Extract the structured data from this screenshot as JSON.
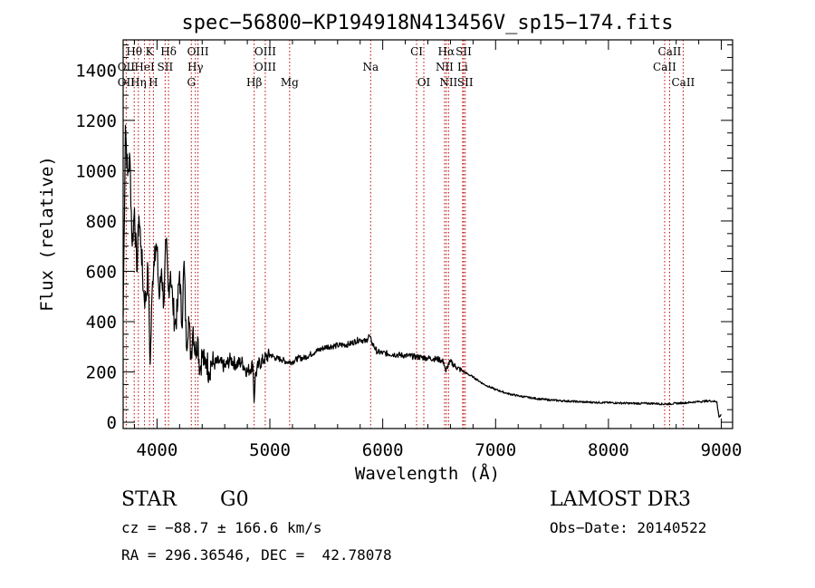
{
  "chart_data": {
    "type": "line",
    "title": "spec−56800−KP194918N413456V_sp15−174.fits",
    "xlabel": "Wavelength (Å)",
    "ylabel": "Flux (relative)",
    "xlim": [
      3700,
      9100
    ],
    "ylim": [
      -25,
      1520
    ],
    "x_ticks": [
      4000,
      5000,
      6000,
      7000,
      8000,
      9000
    ],
    "y_ticks": [
      0,
      200,
      400,
      600,
      800,
      1000,
      1200,
      1400
    ],
    "grid": false,
    "series": [
      {
        "name": "flux",
        "x": [
          3700,
          3720,
          3740,
          3760,
          3780,
          3800,
          3820,
          3840,
          3860,
          3880,
          3900,
          3920,
          3940,
          3960,
          3980,
          4000,
          4020,
          4040,
          4060,
          4080,
          4100,
          4120,
          4140,
          4160,
          4180,
          4200,
          4220,
          4240,
          4260,
          4280,
          4300,
          4320,
          4340,
          4360,
          4380,
          4400,
          4420,
          4440,
          4460,
          4480,
          4500,
          4550,
          4600,
          4650,
          4700,
          4750,
          4800,
          4850,
          4860,
          4870,
          4900,
          4950,
          5000,
          5050,
          5100,
          5150,
          5200,
          5250,
          5300,
          5400,
          5500,
          5600,
          5700,
          5800,
          5850,
          5880,
          5900,
          5950,
          6000,
          6100,
          6200,
          6300,
          6400,
          6500,
          6540,
          6560,
          6580,
          6600,
          6650,
          6700,
          6800,
          6900,
          7000,
          7100,
          7200,
          7300,
          7400,
          7500,
          7600,
          7800,
          8000,
          8200,
          8400,
          8500,
          8600,
          8700,
          8800,
          8900,
          8960,
          8980,
          9000
        ],
        "y": [
          420,
          1180,
          980,
          1050,
          700,
          850,
          600,
          820,
          700,
          520,
          480,
          610,
          230,
          560,
          700,
          680,
          490,
          610,
          470,
          720,
          520,
          600,
          470,
          390,
          440,
          600,
          380,
          640,
          300,
          420,
          260,
          380,
          270,
          340,
          210,
          270,
          230,
          250,
          200,
          240,
          230,
          240,
          220,
          250,
          230,
          240,
          200,
          230,
          80,
          180,
          230,
          250,
          270,
          255,
          250,
          240,
          240,
          255,
          255,
          280,
          300,
          305,
          310,
          330,
          320,
          345,
          320,
          280,
          275,
          270,
          265,
          260,
          255,
          250,
          240,
          200,
          230,
          240,
          220,
          205,
          180,
          150,
          130,
          115,
          105,
          98,
          92,
          88,
          85,
          80,
          78,
          75,
          75,
          72,
          75,
          78,
          82,
          85,
          82,
          20,
          30
        ]
      }
    ],
    "spectral_lines": [
      {
        "label": "Hθ",
        "x": 3798,
        "row": 0
      },
      {
        "label": "K",
        "x": 3934,
        "row": 0
      },
      {
        "label": "Hδ",
        "x": 4102,
        "row": 0
      },
      {
        "label": "OIII",
        "x": 4363,
        "row": 0
      },
      {
        "label": "OIII",
        "x": 4959,
        "row": 0
      },
      {
        "label": "CI",
        "x": 6300,
        "row": 0
      },
      {
        "label": "Hα",
        "x": 6563,
        "row": 0
      },
      {
        "label": "SII",
        "x": 6717,
        "row": 0
      },
      {
        "label": "CaII",
        "x": 8542,
        "row": 0
      },
      {
        "label": "OII",
        "x": 3727,
        "row": 1
      },
      {
        "label": "HeI",
        "x": 3889,
        "row": 1
      },
      {
        "label": "SII",
        "x": 4072,
        "row": 1
      },
      {
        "label": "Hγ",
        "x": 4340,
        "row": 1
      },
      {
        "label": "OIII",
        "x": 4959,
        "row": 1
      },
      {
        "label": "Na",
        "x": 5893,
        "row": 1
      },
      {
        "label": "NII",
        "x": 6548,
        "row": 1
      },
      {
        "label": "Li",
        "x": 6708,
        "row": 1
      },
      {
        "label": "CaII",
        "x": 8498,
        "row": 1
      },
      {
        "label": "OII",
        "x": 3727,
        "row": 2
      },
      {
        "label": "Hη",
        "x": 3835,
        "row": 2
      },
      {
        "label": "H",
        "x": 3968,
        "row": 2
      },
      {
        "label": "G",
        "x": 4304,
        "row": 2
      },
      {
        "label": "Hβ",
        "x": 4861,
        "row": 2
      },
      {
        "label": "Mg",
        "x": 5175,
        "row": 2
      },
      {
        "label": "OI",
        "x": 6364,
        "row": 2
      },
      {
        "label": "NII",
        "x": 6583,
        "row": 2
      },
      {
        "label": "SII",
        "x": 6731,
        "row": 2
      },
      {
        "label": "CaII",
        "x": 8662,
        "row": 2
      }
    ]
  },
  "info": {
    "object_class": "STAR",
    "subclass": "G0",
    "survey": "LAMOST DR3",
    "cz": "cz = −88.7 ± 166.6 km/s",
    "obs_date": "Obs−Date: 20140522",
    "coords": "RA = 296.36546, DEC =  42.78078"
  }
}
